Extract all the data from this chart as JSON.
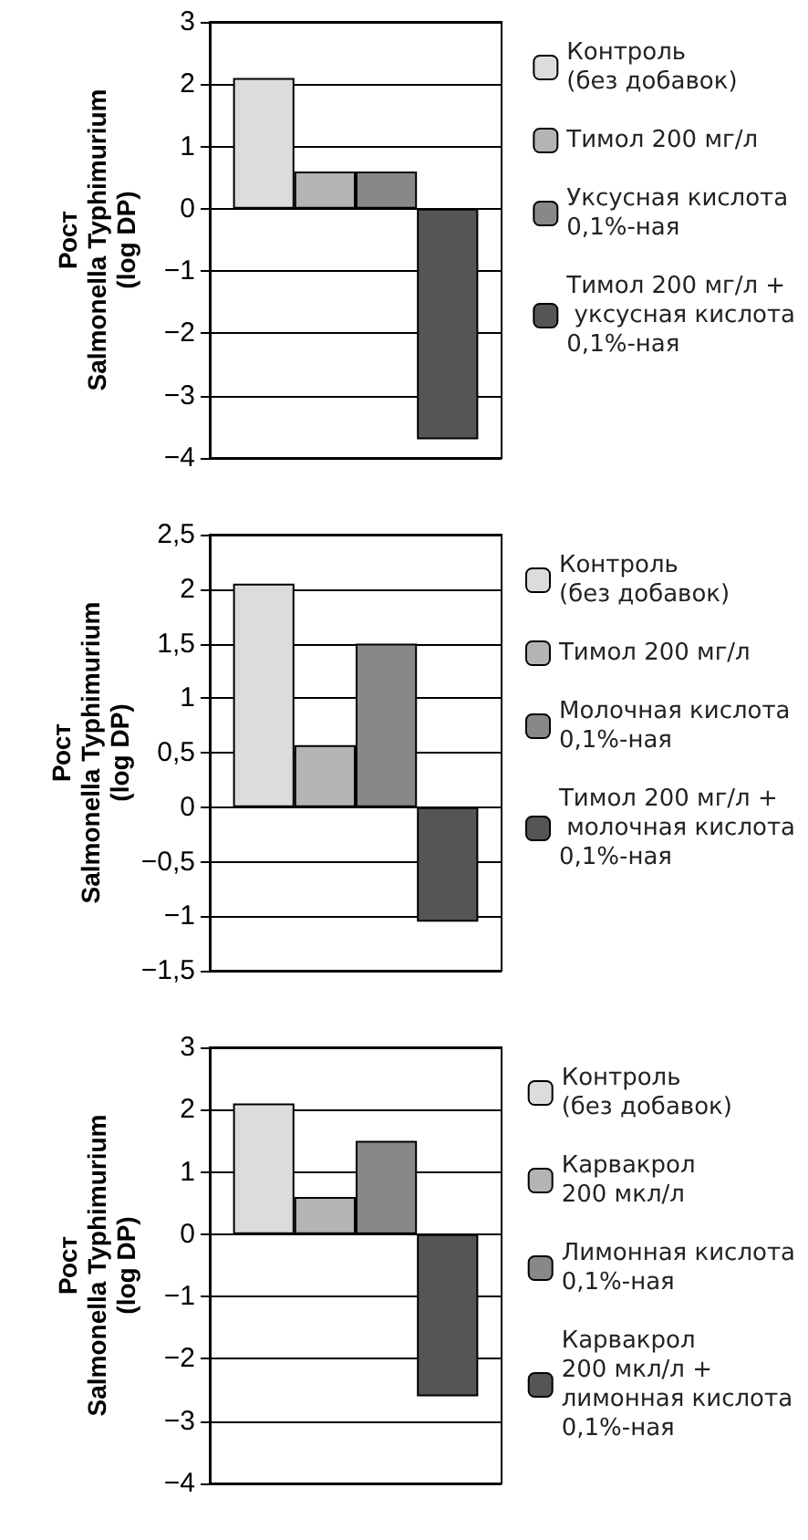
{
  "chart_data": [
    {
      "type": "bar",
      "ylabel": "Рост\nSalmonella Typhimurium\n(log DP)",
      "categories": [
        null
      ],
      "ylim": [
        -4,
        3
      ],
      "yticks": [
        3,
        2,
        1,
        0,
        {
          "value": -1,
          "label": "−1"
        },
        {
          "value": -2,
          "label": "−2"
        },
        {
          "value": -3,
          "label": "−3"
        },
        {
          "value": -4,
          "label": "−4"
        }
      ],
      "grid": "y",
      "legend": "right",
      "series": [
        {
          "name": "Контроль\n(без добавок)",
          "color": "#dcdcdc",
          "values": [
            2.1
          ]
        },
        {
          "name": "Тимол 200 мг/л",
          "color": "#b4b4b4",
          "values": [
            0.6
          ]
        },
        {
          "name": "Уксусная кислота\n0,1%-ная",
          "color": "#888888",
          "values": [
            0.6
          ]
        },
        {
          "name": "Тимол 200 мг/л +\n уксусная кислота\n0,1%-ная",
          "color": "#555555",
          "values": [
            -3.7
          ]
        }
      ]
    },
    {
      "type": "bar",
      "ylabel": "Рост\nSalmonella Typhimurium\n(log DP)",
      "categories": [
        null
      ],
      "ylim": [
        -1.5,
        2.5
      ],
      "yticks": [
        {
          "value": 2.5,
          "label": "2,5"
        },
        2,
        {
          "value": 1.5,
          "label": "1,5"
        },
        1,
        {
          "value": 0.5,
          "label": "0,5"
        },
        0,
        {
          "value": -0.5,
          "label": "−0,5"
        },
        {
          "value": -1,
          "label": "−1"
        },
        {
          "value": -1.5,
          "label": "−1,5"
        }
      ],
      "grid": "y",
      "legend": "right",
      "series": [
        {
          "name": "Контроль\n(без добавок)",
          "color": "#dcdcdc",
          "values": [
            2.05
          ]
        },
        {
          "name": "Тимол 200 мг/л",
          "color": "#b4b4b4",
          "values": [
            0.57
          ]
        },
        {
          "name": "Молочная кислота\n0,1%-ная",
          "color": "#888888",
          "values": [
            1.5
          ]
        },
        {
          "name": "Тимол 200 мг/л +\n молочная кислота\n0,1%-ная",
          "color": "#555555",
          "values": [
            -1.05
          ]
        }
      ]
    },
    {
      "type": "bar",
      "ylabel": "Рост\nSalmonella Typhimurium\n(log DP)",
      "categories": [
        null
      ],
      "ylim": [
        -4,
        3
      ],
      "yticks": [
        3,
        2,
        1,
        0,
        {
          "value": -1,
          "label": "−1"
        },
        {
          "value": -2,
          "label": "−2"
        },
        {
          "value": -3,
          "label": "−3"
        },
        {
          "value": -4,
          "label": "−4"
        }
      ],
      "grid": "y",
      "legend": "right",
      "series": [
        {
          "name": "Контроль\n(без добавок)",
          "color": "#dcdcdc",
          "values": [
            2.1
          ]
        },
        {
          "name": "Карвакрол\n200 мкл/л",
          "color": "#b4b4b4",
          "values": [
            0.6
          ]
        },
        {
          "name": "Лимонная кислота\n0,1%-ная",
          "color": "#888888",
          "values": [
            1.5
          ]
        },
        {
          "name": "Карвакрол\n200 мкл/л +\nлимонная кислота\n0,1%-ная",
          "color": "#555555",
          "values": [
            -2.6
          ]
        }
      ]
    }
  ]
}
